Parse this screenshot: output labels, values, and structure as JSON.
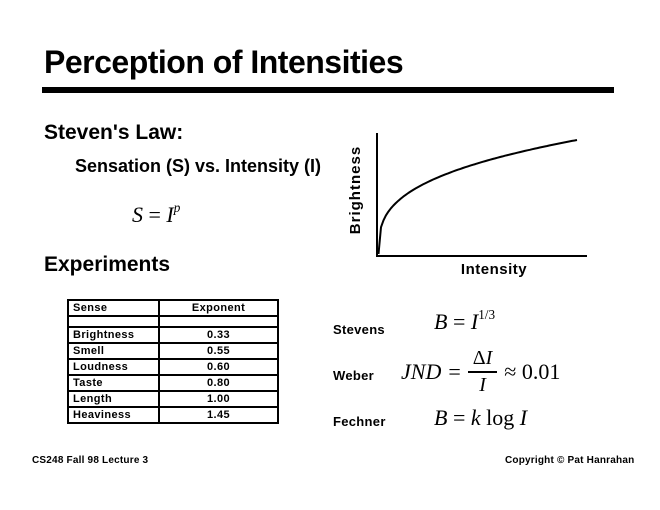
{
  "title": "Perception of Intensities",
  "stevens_law": {
    "heading": "Steven's Law:",
    "subtitle": "Sensation (S) vs. Intensity (I)",
    "formula": {
      "lhs": "S",
      "eq": "=",
      "base": "I",
      "exponent": "p"
    }
  },
  "experiments": {
    "heading": "Experiments",
    "table": {
      "headers": [
        "Sense",
        "Exponent"
      ],
      "rows": [
        {
          "sense": "Brightness",
          "exponent": "0.33"
        },
        {
          "sense": "Smell",
          "exponent": "0.55"
        },
        {
          "sense": "Loudness",
          "exponent": "0.60"
        },
        {
          "sense": "Taste",
          "exponent": "0.80"
        },
        {
          "sense": "Length",
          "exponent": "1.00"
        },
        {
          "sense": "Heaviness",
          "exponent": "1.45"
        }
      ]
    }
  },
  "chart_data": {
    "type": "line",
    "title": "",
    "xlabel": "Intensity",
    "ylabel": "Brightness",
    "function": "B = I^(1/3)",
    "exponent": 0.33,
    "x_range": [
      0,
      1
    ],
    "y_range": [
      0,
      1
    ],
    "grid": false,
    "axis_ticks": "none",
    "legend": "none",
    "points_normalized": [
      [
        0,
        0
      ],
      [
        0.1,
        0.47
      ],
      [
        0.2,
        0.59
      ],
      [
        0.3,
        0.67
      ],
      [
        0.4,
        0.74
      ],
      [
        0.5,
        0.8
      ],
      [
        0.6,
        0.84
      ],
      [
        0.7,
        0.89
      ],
      [
        0.8,
        0.93
      ],
      [
        0.9,
        0.97
      ],
      [
        1.0,
        1.0
      ]
    ]
  },
  "laws": {
    "stevens": {
      "label": "Stevens",
      "var1": "B",
      "eq": "=",
      "var2": "I",
      "exponent": "1/3"
    },
    "weber": {
      "label": "Weber",
      "lhs": "JND",
      "eq": "=",
      "num_delta": "Δ",
      "num_var": "I",
      "den": "I",
      "approx": "≈ 0.01"
    },
    "fechner": {
      "label": "Fechner",
      "var1": "B",
      "eq": "=",
      "var2": "k",
      "fn": "log",
      "var3": "I"
    }
  },
  "footer": {
    "left": "CS248 Fall 98 Lecture 3",
    "right": "Copyright © Pat Hanrahan"
  },
  "colors": {
    "ink": "#000000",
    "background": "#ffffff"
  }
}
